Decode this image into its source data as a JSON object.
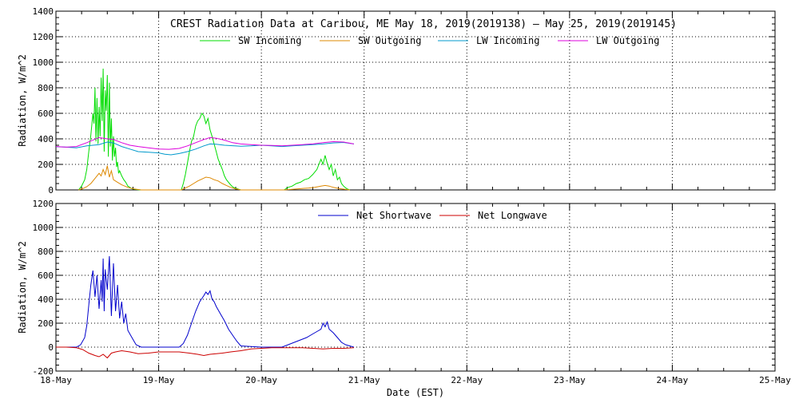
{
  "chart_data": [
    {
      "type": "line",
      "title": "CREST Radiation Data at Caribou, ME   May 18, 2019(2019138) – May 25, 2019(2019145)",
      "xlabel": "",
      "ylabel": "Radiation, W/m^2",
      "x_categories": [
        "18-May",
        "19-May",
        "20-May",
        "21-May",
        "22-May",
        "23-May",
        "24-May",
        "25-May"
      ],
      "xlim": [
        0,
        7
      ],
      "ylim": [
        0,
        1400
      ],
      "yticks": [
        0,
        200,
        400,
        600,
        800,
        1000,
        1200,
        1400
      ],
      "grid": true,
      "legend": "top",
      "series": [
        {
          "name": "SW Incoming",
          "color": "#00dd00",
          "x": [
            0.22,
            0.25,
            0.28,
            0.3,
            0.32,
            0.34,
            0.36,
            0.37,
            0.38,
            0.39,
            0.4,
            0.41,
            0.42,
            0.43,
            0.44,
            0.45,
            0.46,
            0.47,
            0.48,
            0.49,
            0.5,
            0.51,
            0.52,
            0.53,
            0.54,
            0.55,
            0.56,
            0.57,
            0.58,
            0.59,
            0.6,
            0.61,
            0.62,
            0.64,
            0.66,
            0.68,
            0.7,
            0.72,
            0.74,
            0.77,
            0.8,
            0.83,
            1.22,
            1.24,
            1.26,
            1.28,
            1.3,
            1.32,
            1.34,
            1.36,
            1.38,
            1.4,
            1.42,
            1.44,
            1.46,
            1.48,
            1.5,
            1.52,
            1.54,
            1.56,
            1.58,
            1.6,
            1.62,
            1.64,
            1.66,
            1.68,
            1.7,
            1.72,
            1.74,
            1.76,
            1.78,
            1.8,
            2.22,
            2.26,
            2.3,
            2.34,
            2.38,
            2.42,
            2.46,
            2.5,
            2.52,
            2.54,
            2.56,
            2.58,
            2.6,
            2.62,
            2.64,
            2.66,
            2.68,
            2.7,
            2.72,
            2.74,
            2.76,
            2.78,
            2.8,
            2.83,
            2.86
          ],
          "y": [
            0,
            30,
            80,
            160,
            300,
            430,
            600,
            520,
            800,
            380,
            720,
            360,
            650,
            420,
            880,
            540,
            950,
            300,
            780,
            620,
            900,
            260,
            840,
            340,
            560,
            230,
            420,
            260,
            330,
            180,
            220,
            130,
            150,
            110,
            80,
            60,
            30,
            20,
            10,
            5,
            2,
            0,
            0,
            50,
            120,
            210,
            300,
            380,
            420,
            500,
            540,
            560,
            600,
            580,
            520,
            560,
            470,
            420,
            360,
            300,
            240,
            200,
            160,
            110,
            80,
            60,
            40,
            25,
            15,
            10,
            5,
            0,
            0,
            20,
            30,
            50,
            60,
            80,
            90,
            120,
            140,
            160,
            200,
            240,
            200,
            270,
            210,
            160,
            200,
            110,
            160,
            80,
            100,
            50,
            30,
            10,
            0
          ]
        },
        {
          "name": "SW Outgoing",
          "color": "#dd8800",
          "x": [
            0.22,
            0.26,
            0.3,
            0.34,
            0.38,
            0.42,
            0.44,
            0.46,
            0.48,
            0.5,
            0.52,
            0.54,
            0.56,
            0.6,
            0.64,
            0.7,
            0.76,
            0.83,
            1.22,
            1.26,
            1.3,
            1.34,
            1.38,
            1.42,
            1.46,
            1.5,
            1.54,
            1.58,
            1.62,
            1.66,
            1.7,
            1.74,
            1.8,
            2.22,
            2.3,
            2.38,
            2.46,
            2.52,
            2.58,
            2.62,
            2.66,
            2.7,
            2.76,
            2.86
          ],
          "y": [
            0,
            10,
            25,
            50,
            90,
            130,
            110,
            160,
            120,
            190,
            100,
            150,
            80,
            60,
            40,
            20,
            8,
            0,
            0,
            15,
            30,
            50,
            70,
            85,
            100,
            95,
            80,
            70,
            50,
            35,
            20,
            10,
            0,
            0,
            5,
            10,
            15,
            20,
            30,
            35,
            30,
            20,
            10,
            0
          ]
        },
        {
          "name": "LW Incoming",
          "color": "#0099cc",
          "x": [
            0.0,
            0.1,
            0.2,
            0.3,
            0.36,
            0.42,
            0.46,
            0.5,
            0.56,
            0.64,
            0.72,
            0.8,
            0.9,
            1.0,
            1.06,
            1.12,
            1.2,
            1.28,
            1.36,
            1.44,
            1.5,
            1.56,
            1.64,
            1.72,
            1.8,
            1.9,
            2.0,
            2.1,
            2.2,
            2.3,
            2.4,
            2.5,
            2.6,
            2.7,
            2.8,
            2.9
          ],
          "y": [
            338,
            335,
            330,
            345,
            350,
            355,
            365,
            375,
            368,
            340,
            320,
            300,
            295,
            290,
            280,
            275,
            285,
            300,
            320,
            345,
            360,
            358,
            350,
            346,
            342,
            345,
            350,
            345,
            340,
            345,
            350,
            355,
            360,
            368,
            372,
            360
          ]
        },
        {
          "name": "LW Outgoing",
          "color": "#dd00dd",
          "x": [
            0.0,
            0.1,
            0.2,
            0.3,
            0.36,
            0.42,
            0.46,
            0.5,
            0.56,
            0.64,
            0.72,
            0.8,
            0.9,
            1.0,
            1.1,
            1.2,
            1.28,
            1.36,
            1.44,
            1.5,
            1.56,
            1.64,
            1.72,
            1.8,
            1.9,
            2.0,
            2.1,
            2.2,
            2.3,
            2.4,
            2.5,
            2.6,
            2.7,
            2.8,
            2.9
          ],
          "y": [
            340,
            335,
            340,
            370,
            390,
            410,
            405,
            400,
            395,
            370,
            350,
            340,
            330,
            320,
            318,
            325,
            345,
            370,
            395,
            410,
            405,
            390,
            370,
            360,
            355,
            350,
            348,
            345,
            350,
            355,
            360,
            370,
            378,
            375,
            360
          ]
        }
      ]
    },
    {
      "type": "line",
      "title": "",
      "xlabel": "Date (EST)",
      "ylabel": "Radiation, W/m^2",
      "x_categories": [
        "18-May",
        "19-May",
        "20-May",
        "21-May",
        "22-May",
        "23-May",
        "24-May",
        "25-May"
      ],
      "xlim": [
        0,
        7
      ],
      "ylim": [
        -200,
        1200
      ],
      "yticks": [
        -200,
        0,
        200,
        400,
        600,
        800,
        1000,
        1200
      ],
      "grid": true,
      "legend": "top",
      "series": [
        {
          "name": "Net Shortwave",
          "color": "#0000cc",
          "x": [
            0.0,
            0.1,
            0.2,
            0.24,
            0.28,
            0.3,
            0.32,
            0.34,
            0.36,
            0.38,
            0.4,
            0.42,
            0.44,
            0.45,
            0.46,
            0.47,
            0.48,
            0.5,
            0.52,
            0.54,
            0.56,
            0.58,
            0.6,
            0.62,
            0.64,
            0.66,
            0.68,
            0.7,
            0.74,
            0.78,
            0.83,
            1.0,
            1.2,
            1.24,
            1.28,
            1.32,
            1.36,
            1.4,
            1.44,
            1.46,
            1.48,
            1.5,
            1.52,
            1.54,
            1.56,
            1.6,
            1.64,
            1.68,
            1.72,
            1.76,
            1.8,
            2.0,
            2.2,
            2.26,
            2.32,
            2.38,
            2.44,
            2.5,
            2.54,
            2.58,
            2.6,
            2.62,
            2.64,
            2.66,
            2.7,
            2.74,
            2.78,
            2.82,
            2.86,
            2.9
          ],
          "y": [
            0,
            0,
            0,
            20,
            80,
            180,
            350,
            520,
            640,
            420,
            600,
            320,
            560,
            380,
            740,
            300,
            650,
            480,
            760,
            260,
            700,
            300,
            520,
            240,
            380,
            200,
            280,
            140,
            80,
            20,
            0,
            0,
            0,
            30,
            100,
            200,
            300,
            380,
            430,
            460,
            440,
            470,
            400,
            380,
            340,
            280,
            220,
            150,
            100,
            50,
            10,
            0,
            0,
            20,
            40,
            60,
            80,
            110,
            130,
            150,
            200,
            170,
            210,
            150,
            120,
            80,
            40,
            20,
            10,
            0
          ]
        },
        {
          "name": "Net Longwave",
          "color": "#cc0000",
          "x": [
            0.0,
            0.1,
            0.2,
            0.26,
            0.32,
            0.38,
            0.42,
            0.46,
            0.5,
            0.54,
            0.58,
            0.64,
            0.72,
            0.8,
            0.9,
            1.0,
            1.1,
            1.2,
            1.3,
            1.38,
            1.44,
            1.5,
            1.56,
            1.62,
            1.7,
            1.8,
            1.9,
            2.0,
            2.1,
            2.2,
            2.3,
            2.4,
            2.5,
            2.6,
            2.7,
            2.8,
            2.9
          ],
          "y": [
            0,
            0,
            -5,
            -20,
            -50,
            -70,
            -80,
            -60,
            -90,
            -50,
            -40,
            -30,
            -40,
            -55,
            -50,
            -40,
            -40,
            -40,
            -50,
            -60,
            -70,
            -60,
            -55,
            -50,
            -40,
            -30,
            -15,
            -10,
            -5,
            -5,
            -5,
            -5,
            -10,
            -15,
            -10,
            -10,
            -5
          ]
        }
      ]
    }
  ]
}
